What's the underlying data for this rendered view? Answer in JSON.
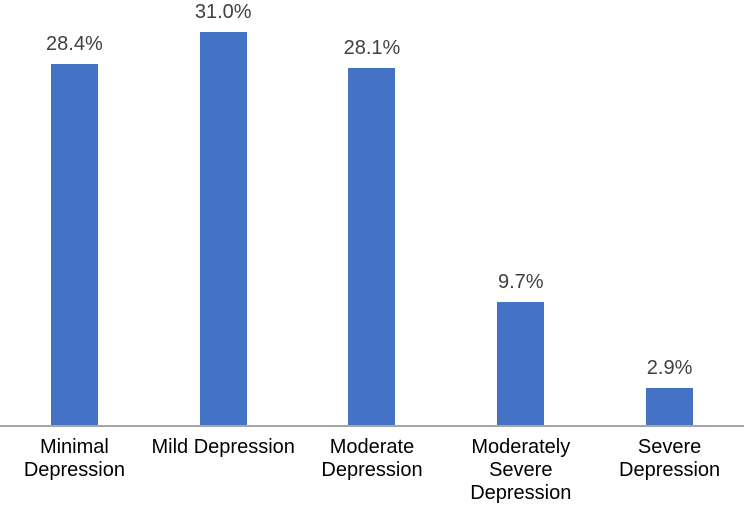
{
  "chart_data": {
    "type": "bar",
    "title": "",
    "xlabel": "",
    "ylabel": "",
    "categories": [
      "Minimal Depression",
      "Mild Depression",
      "Moderate Depression",
      "Moderately Severe Depression",
      "Severe Depression"
    ],
    "values": [
      28.4,
      31.0,
      28.1,
      9.7,
      2.9
    ],
    "data_labels": [
      "28.4%",
      "31.0%",
      "28.1%",
      "9.7%",
      "2.9%"
    ],
    "unit": "%",
    "ylim": [
      0,
      33.4
    ],
    "grid": false,
    "legend_position": "none",
    "colors": {
      "bar": "#4472C4",
      "axis_line": "#A6A6A6",
      "data_label": "#404040",
      "category_label": "#000000",
      "background": "#FFFFFF"
    }
  }
}
